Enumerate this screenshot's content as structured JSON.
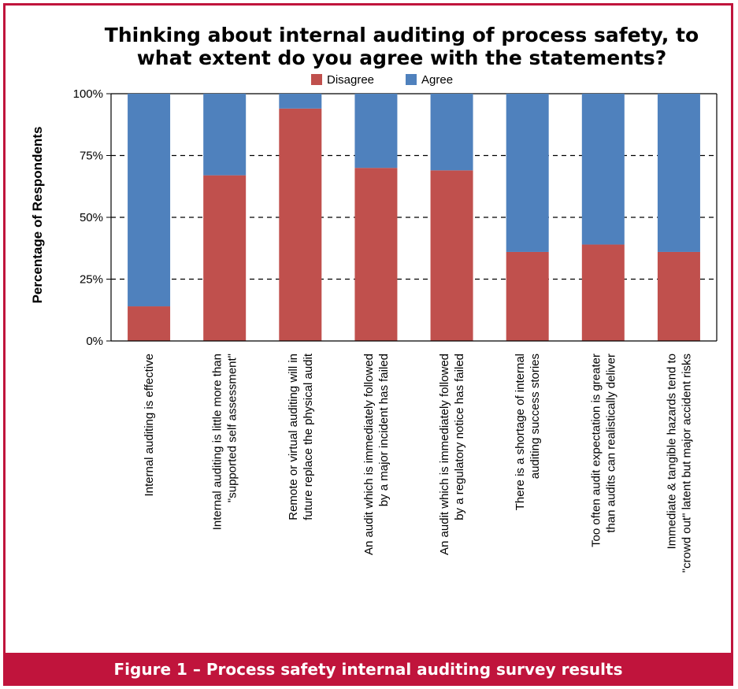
{
  "caption": "Figure 1 – Process safety internal auditing survey results",
  "chart_data": {
    "type": "bar",
    "stacked": true,
    "title_lines": [
      "Thinking about internal auditing of process safety, to",
      "what extent do you agree with the statements?"
    ],
    "ylabel": "Percentage of Respondents",
    "yticks": [
      "0%",
      "25%",
      "50%",
      "75%",
      "100%"
    ],
    "ylim": [
      0,
      100
    ],
    "grid": "dashed horizontal",
    "legend_position": "top-center",
    "categories": [
      [
        "Internal auditing is effective"
      ],
      [
        "Internal auditing is little more than",
        "\"supported self assessment\""
      ],
      [
        "Remote or virtual auditing will in",
        "future replace the physical audit"
      ],
      [
        "An audit which is immediately followed",
        "by a major incident has failed"
      ],
      [
        "An audit which is immediately followed",
        "by a regulatory notice has failed"
      ],
      [
        "There is a shortage of internal",
        "auditing success stories"
      ],
      [
        "Too often audit expectation is greater",
        "than audits can realistically deliver"
      ],
      [
        "Immediate & tangible hazards tend to",
        "\"crowd out\" latent but major accident risks"
      ]
    ],
    "series": [
      {
        "name": "Disagree",
        "color": "#c0504d",
        "values": [
          14,
          67,
          94,
          70,
          69,
          36,
          39,
          36
        ]
      },
      {
        "name": "Agree",
        "color": "#4f81bd",
        "values": [
          86,
          33,
          6,
          30,
          31,
          64,
          61,
          64
        ]
      }
    ]
  }
}
